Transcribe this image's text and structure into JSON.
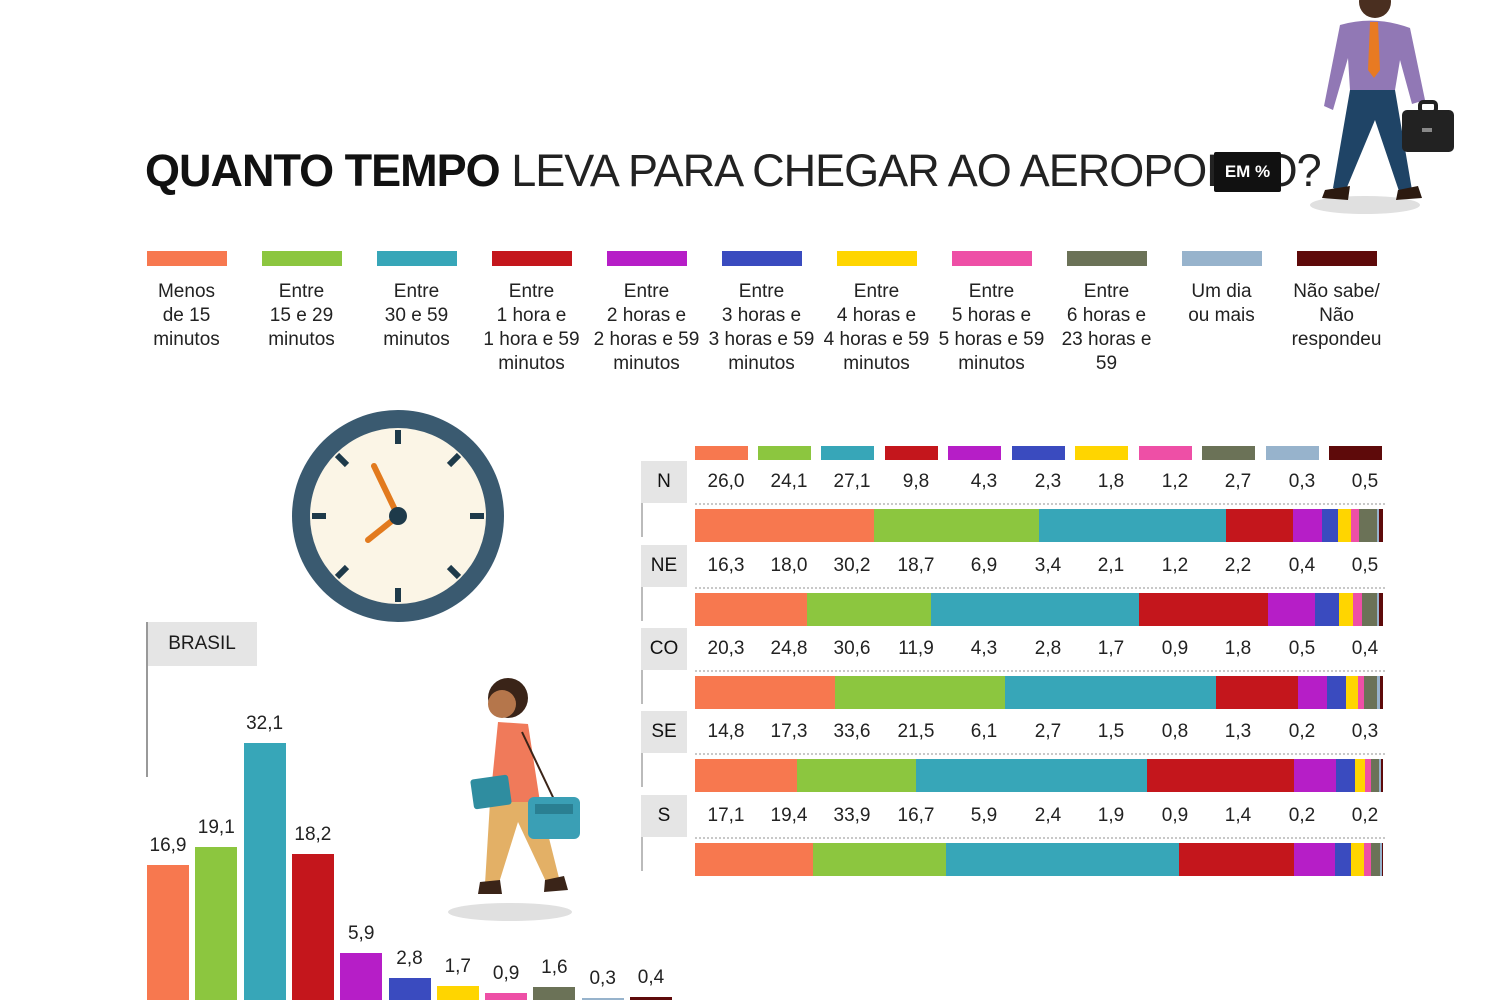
{
  "title": {
    "bold": "QUANTO TEMPO",
    "light": "LEVA PARA CHEGAR AO AEROPORTO?",
    "unit": "EM %"
  },
  "legend": [
    {
      "label": "Menos\nde 15\nminutos",
      "color": "#f7784f"
    },
    {
      "label": "Entre\n15 e 29\nminutos",
      "color": "#8cc63f"
    },
    {
      "label": "Entre\n30 e 59\nminutos",
      "color": "#37a6b8"
    },
    {
      "label": "Entre\n1 hora e\n1 hora e 59\nminutos",
      "color": "#c4161c"
    },
    {
      "label": "Entre\n2 horas e\n2 horas e 59\nminutos",
      "color": "#b61ec7"
    },
    {
      "label": "Entre\n3 horas e\n3 horas e 59\nminutos",
      "color": "#3a4bbf"
    },
    {
      "label": "Entre\n4 horas e\n4 horas e 59\nminutos",
      "color": "#ffd500"
    },
    {
      "label": "Entre\n5 horas e\n5 horas e 59\nminutos",
      "color": "#ee4fa6"
    },
    {
      "label": "Entre\n6 horas e\n23 horas e\n59",
      "color": "#6b7257"
    },
    {
      "label": "Um dia\nou mais",
      "color": "#97b3cc"
    },
    {
      "label": "Não sabe/\nNão\nrespondeu",
      "color": "#5e0a0a"
    }
  ],
  "chart_data": [
    {
      "type": "table",
      "columns": [
        "Menos de 15 minutos",
        "Entre 15 e 29 minutos",
        "Entre 30 e 59 minutos",
        "Entre 1 hora e 1 hora e 59 minutos",
        "Entre 2 horas e 2 horas e 59 minutos",
        "Entre 3 horas e 3 horas e 59 minutos",
        "Entre 4 horas e 4 horas e 59 minutos",
        "Entre 5 horas e 5 horas e 59 minutos",
        "Entre 6 horas e 23 horas e 59",
        "Um dia ou mais",
        "Não sabe/Não respondeu"
      ],
      "rows": [
        {
          "region": "N",
          "values": [
            "26,0",
            "24,1",
            "27,1",
            "9,8",
            "4,3",
            "2,3",
            "1,8",
            "1,2",
            "2,7",
            "0,3",
            "0,5"
          ]
        },
        {
          "region": "NE",
          "values": [
            "16,3",
            "18,0",
            "30,2",
            "18,7",
            "6,9",
            "3,4",
            "2,1",
            "1,2",
            "2,2",
            "0,4",
            "0,5"
          ]
        },
        {
          "region": "CO",
          "values": [
            "20,3",
            "24,8",
            "30,6",
            "11,9",
            "4,3",
            "2,8",
            "1,7",
            "0,9",
            "1,8",
            "0,5",
            "0,4"
          ]
        },
        {
          "region": "SE",
          "values": [
            "14,8",
            "17,3",
            "33,6",
            "21,5",
            "6,1",
            "2,7",
            "1,5",
            "0,8",
            "1,3",
            "0,2",
            "0,3"
          ]
        },
        {
          "region": "S",
          "values": [
            "17,1",
            "19,4",
            "33,9",
            "16,7",
            "5,9",
            "2,4",
            "1,9",
            "0,9",
            "1,4",
            "0,2",
            "0,2"
          ]
        }
      ]
    },
    {
      "type": "bar",
      "title": "BRASIL",
      "categories": [
        "Menos de 15 minutos",
        "Entre 15 e 29 minutos",
        "Entre 30 e 59 minutos",
        "Entre 1 hora e 1 hora e 59 minutos",
        "Entre 2 horas e 2 horas e 59 minutos",
        "Entre 3 horas e 3 horas e 59 minutos",
        "Entre 4 horas e 4 horas e 59 minutos",
        "Entre 5 horas e 5 horas e 59 minutos",
        "Entre 6 horas e 23 horas e 59",
        "Um dia ou mais",
        "Não sabe/Não respondeu"
      ],
      "values": [
        "16,9",
        "19,1",
        "32,1",
        "18,2",
        "5,9",
        "2,8",
        "1,7",
        "0,9",
        "1,6",
        "0,3",
        "0,4"
      ]
    }
  ]
}
